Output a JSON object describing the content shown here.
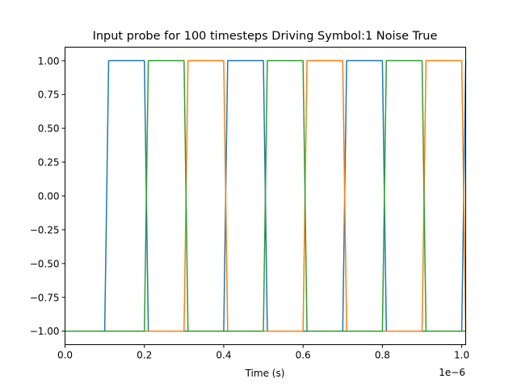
{
  "chart_data": {
    "type": "line",
    "title": "Input probe for 100 timesteps Driving Symbol:1 Noise True",
    "xlabel": "Time (s)",
    "ylabel": "",
    "x_offset_label": "1e−6",
    "xlim": [
      0,
      1.01e-06
    ],
    "ylim": [
      -1.1,
      1.1
    ],
    "grid": false,
    "legend": "none",
    "xticks": [
      0,
      2e-07,
      4e-07,
      6e-07,
      8e-07,
      1e-06
    ],
    "xtick_labels": [
      "0.0",
      "0.2",
      "0.4",
      "0.6",
      "0.8",
      "1.0"
    ],
    "yticks": [
      1.0,
      0.75,
      0.5,
      0.25,
      0.0,
      -0.25,
      -0.5,
      -0.75,
      -1.0
    ],
    "ytick_labels": [
      "1.00",
      "0.75",
      "0.50",
      "0.25",
      "0.00",
      "−0.25",
      "−0.50",
      "−0.75",
      "−1.00"
    ],
    "series": [
      {
        "color": "#1f77b4",
        "points": [
          [
            0,
            -1
          ],
          [
            1e-07,
            -1
          ],
          [
            1.1e-07,
            1
          ],
          [
            2e-07,
            1
          ],
          [
            2.1e-07,
            -1
          ],
          [
            4e-07,
            -1
          ],
          [
            4.1e-07,
            1
          ],
          [
            5e-07,
            1
          ],
          [
            5.1e-07,
            -1
          ],
          [
            7e-07,
            -1
          ],
          [
            7.1e-07,
            1
          ],
          [
            8e-07,
            1
          ],
          [
            8.1e-07,
            -1
          ],
          [
            1e-06,
            -1
          ],
          [
            1.01e-06,
            1
          ]
        ]
      },
      {
        "color": "#ff7f0e",
        "points": [
          [
            0,
            -1
          ],
          [
            2e-07,
            -1
          ],
          [
            2.1e-07,
            -1
          ],
          [
            3e-07,
            -1
          ],
          [
            3.1e-07,
            1
          ],
          [
            4e-07,
            1
          ],
          [
            4.1e-07,
            -1
          ],
          [
            6e-07,
            -1
          ],
          [
            6.1e-07,
            1
          ],
          [
            7e-07,
            1
          ],
          [
            7.1e-07,
            -1
          ],
          [
            9e-07,
            -1
          ],
          [
            9.1e-07,
            1
          ],
          [
            1e-06,
            1
          ],
          [
            1.01e-06,
            -1
          ]
        ]
      },
      {
        "color": "#2ca02c",
        "points": [
          [
            0,
            -1
          ],
          [
            2e-07,
            -1
          ],
          [
            2.1e-07,
            1
          ],
          [
            3e-07,
            1
          ],
          [
            3.1e-07,
            -1
          ],
          [
            5e-07,
            -1
          ],
          [
            5.1e-07,
            1
          ],
          [
            6e-07,
            1
          ],
          [
            6.1e-07,
            -1
          ],
          [
            8e-07,
            -1
          ],
          [
            8.1e-07,
            1
          ],
          [
            9e-07,
            1
          ],
          [
            9.1e-07,
            -1
          ],
          [
            1.01e-06,
            -1
          ]
        ]
      }
    ]
  }
}
